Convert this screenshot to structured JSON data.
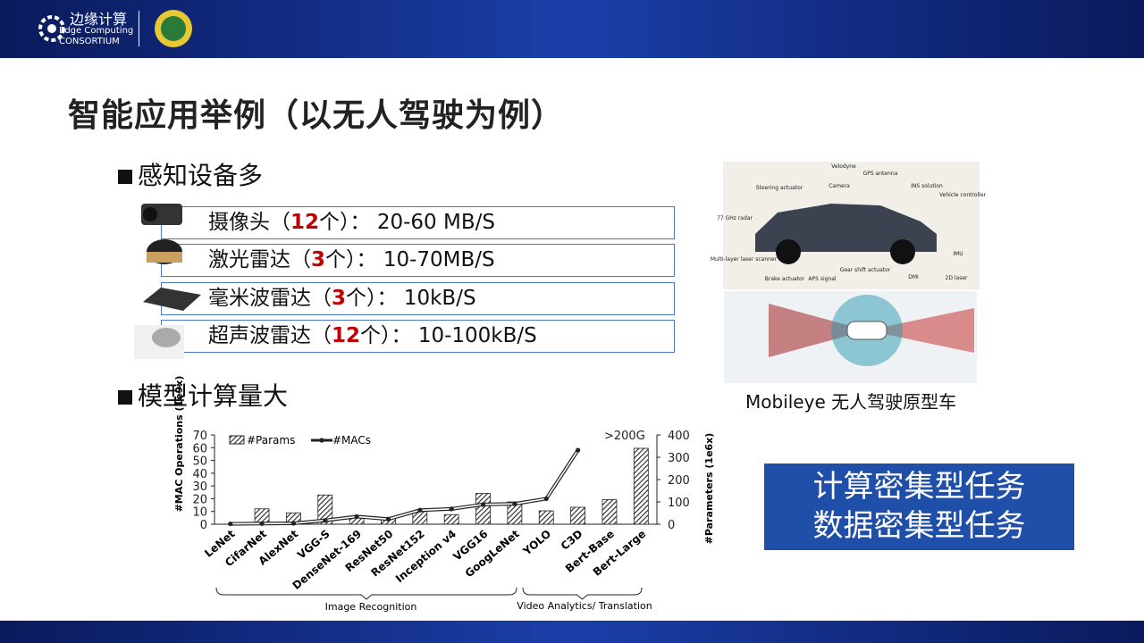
{
  "header": {
    "logo_title": "边缘计算",
    "logo_line1": "Edge Computing",
    "logo_line2": "CONSORTIUM"
  },
  "title": "智能应用举例（以无人驾驶为例）",
  "sections": [
    "感知设备多",
    "模型计算量大"
  ],
  "sensors": [
    {
      "before": "摄像头（",
      "count": "12",
      "after": "个）： 20-60 MB/S"
    },
    {
      "before": "激光雷达（",
      "count": "3",
      "after": "个）： 10-70MB/S"
    },
    {
      "before": "毫米波雷达（",
      "count": "3",
      "after": "个）： 10kB/S"
    },
    {
      "before": "超声波雷达（",
      "count": "12",
      "after": "个）： 10-100kB/S"
    }
  ],
  "figure": {
    "labels": [
      "Velodyne",
      "GPS antenna",
      "Steering actuator",
      "Camera",
      "INS solution",
      "Vehicle controller",
      "77 GHz radar",
      "Multi-layer laser scanner",
      "IMU",
      "Brake actuator",
      "APS signal",
      "Gear shift actuator",
      "DMI",
      "2D laser"
    ],
    "caption": "Mobileye 无人驾驶原型车"
  },
  "callout": [
    "计算密集型任务",
    "数据密集型任务"
  ],
  "chart": {
    "type": "bar-line",
    "y_label": "#MAC Operations (1e9x)",
    "y2_label": "#Parameters (1e6x)",
    "categories": [
      "LeNet",
      "CifarNet",
      "AlexNet",
      "VGG-S",
      "DenseNet-169",
      "ResNet50",
      "ResNet152",
      "Inception v4",
      "VGG16",
      "GoogLeNet",
      "YOLO",
      "C3D",
      "Bert-Base",
      "Bert-Large"
    ],
    "series": [
      {
        "name": "#Params",
        "type": "bar",
        "axis": "y2",
        "values": [
          0,
          69,
          51,
          131,
          29,
          25,
          57,
          43,
          138,
          100,
          60,
          76,
          110,
          340
        ]
      },
      {
        "name": "#MACs",
        "type": "line",
        "values": [
          0.3,
          0.5,
          0.7,
          3,
          6,
          4,
          11,
          12,
          15.5,
          16,
          20,
          58,
          null,
          null
        ]
      }
    ],
    "ylim": [
      0,
      70
    ],
    "yticks": [
      0,
      10,
      20,
      30,
      40,
      50,
      60,
      70
    ],
    "y2lim": [
      0,
      400
    ],
    "y2ticks": [
      0,
      100,
      200,
      300,
      400
    ],
    "annotation": ">200G",
    "groups": [
      "Image Recognition",
      "Video Analytics/ Translation"
    ]
  }
}
